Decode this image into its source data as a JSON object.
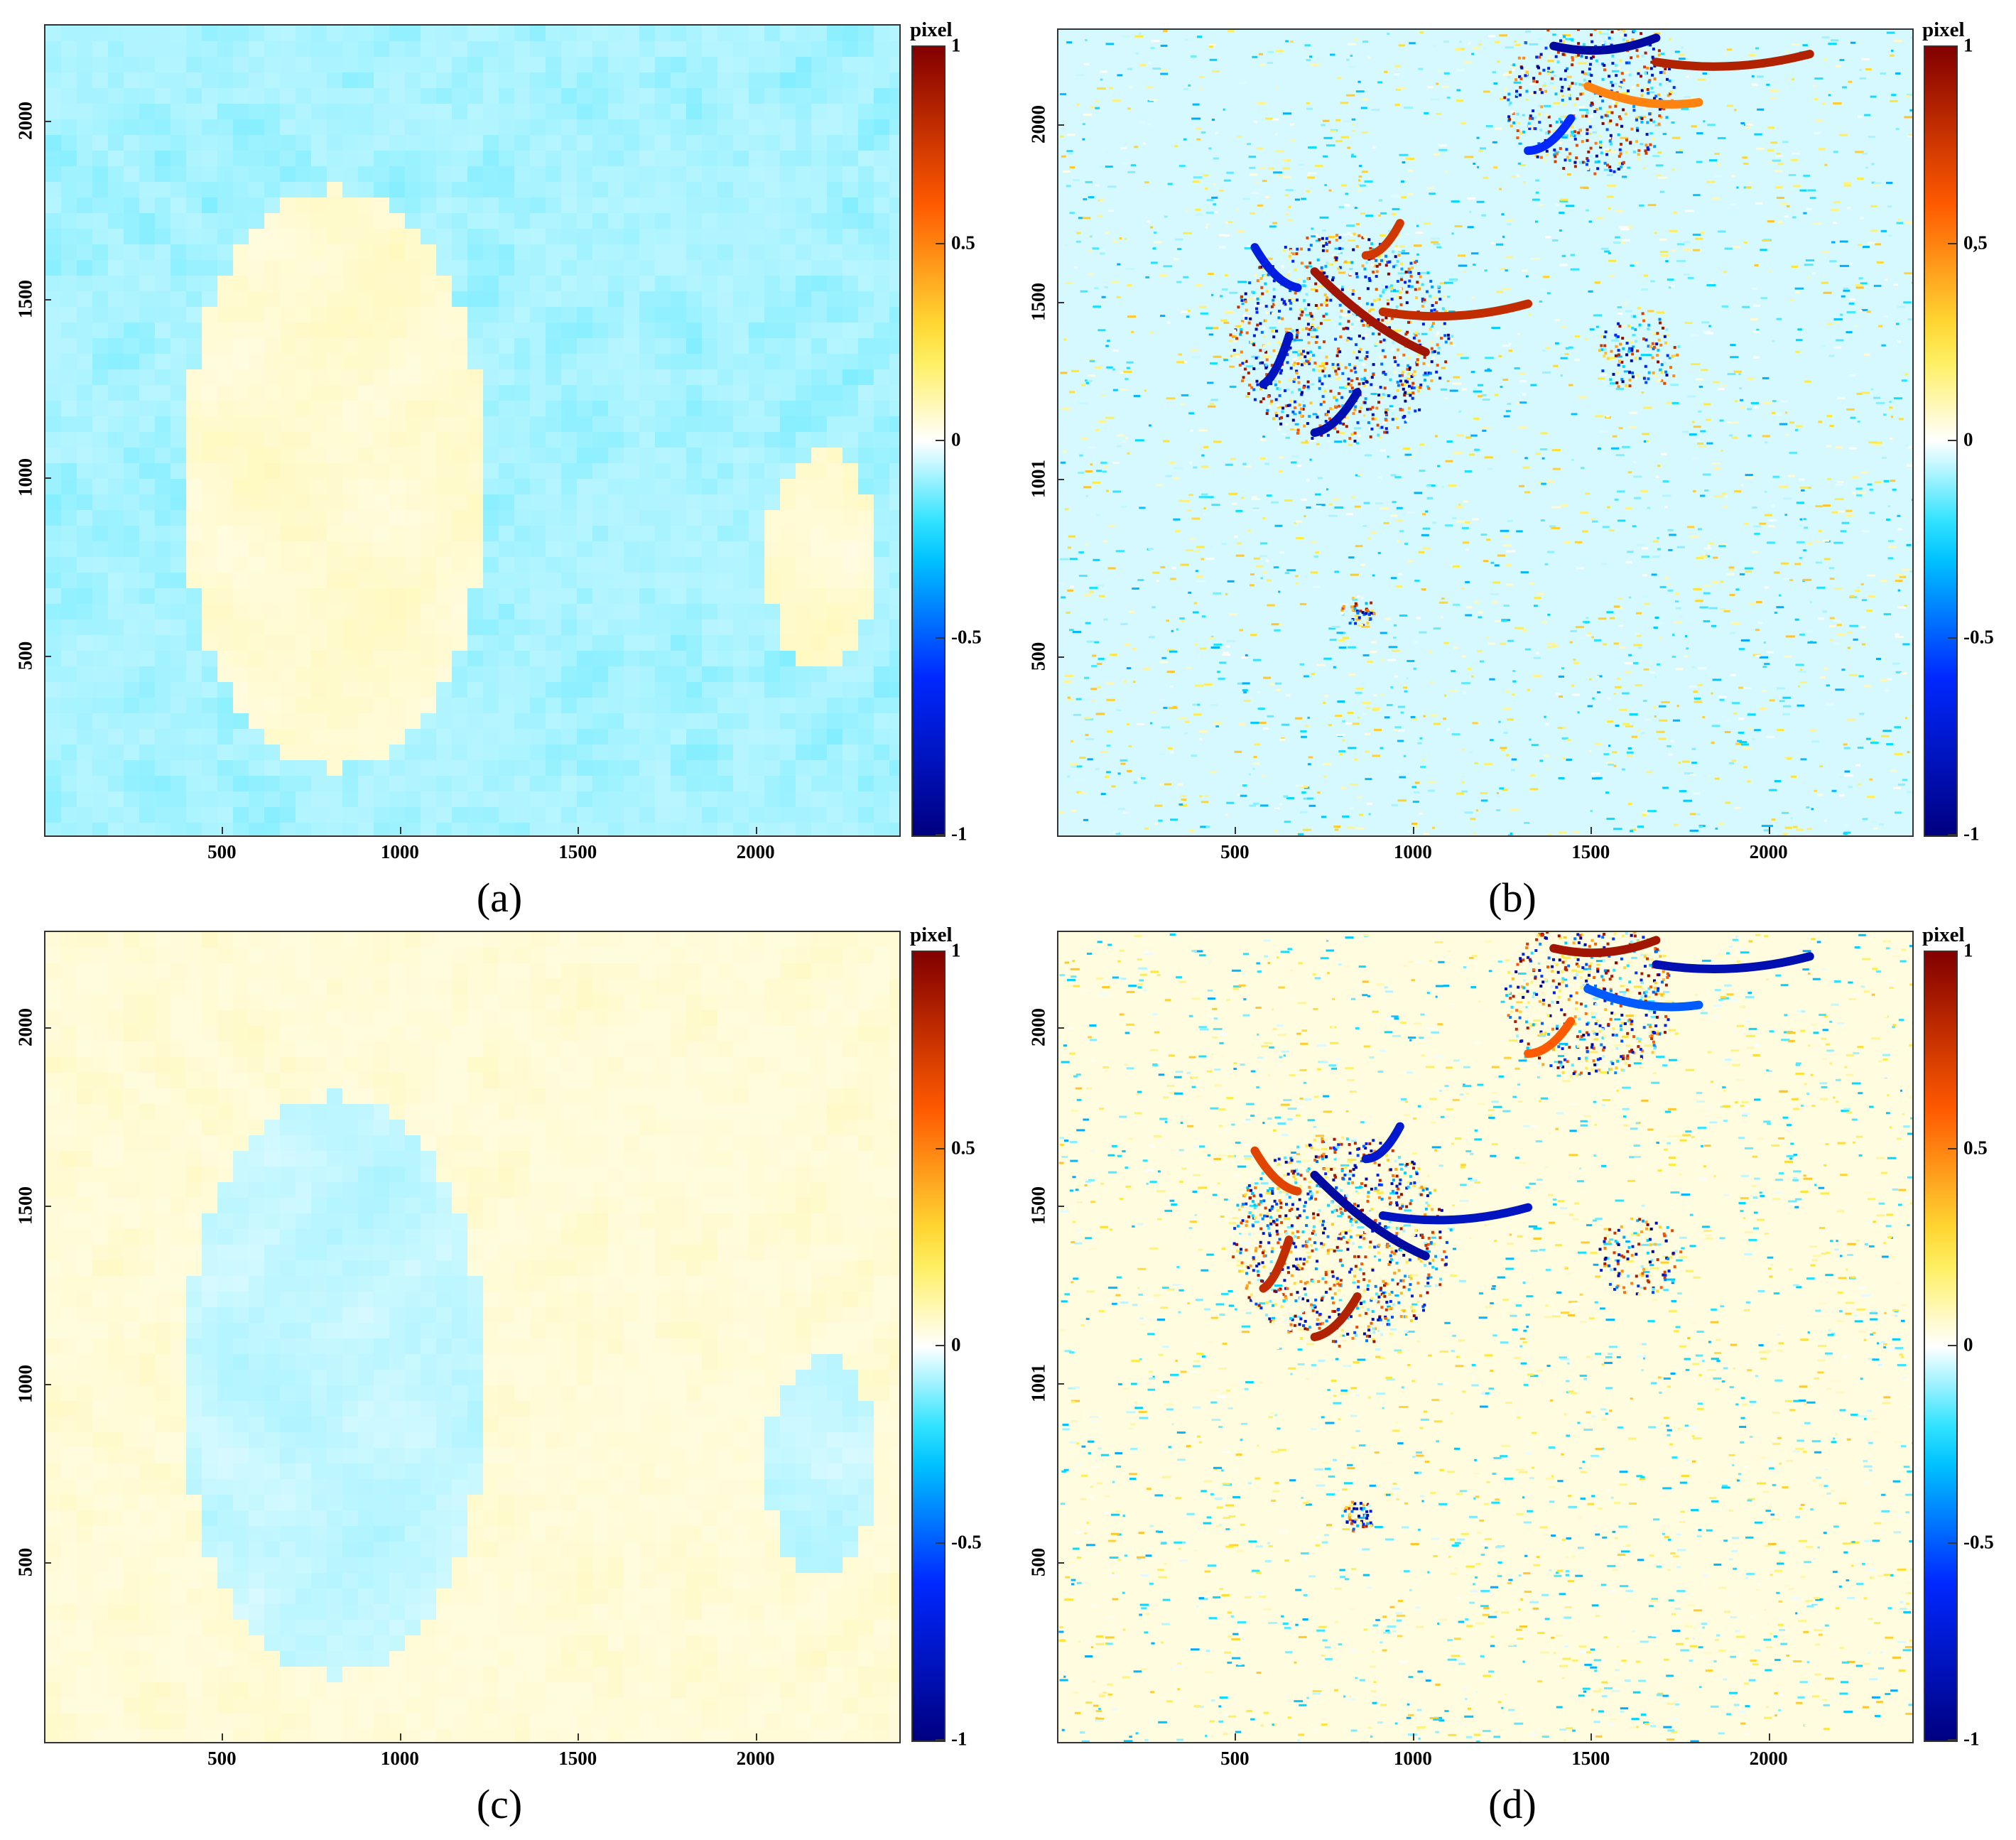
{
  "chart_data": [
    {
      "type": "heatmap",
      "panel_label": "(a)",
      "x_ticks": [
        500,
        1000,
        1500,
        2000
      ],
      "y_ticks": [
        500,
        1000,
        1500,
        2000
      ],
      "xlim": [
        0,
        2400
      ],
      "ylim": [
        0,
        2270
      ],
      "colorbar": {
        "title": "pixel",
        "range": [
          -1,
          1
        ],
        "ticks": [
          "1",
          "0.5",
          "0",
          "-0.5",
          "-1"
        ],
        "colormap": "jet-white-center"
      },
      "pattern": "smooth-terrain",
      "value_range": [
        -0.2,
        0.12
      ],
      "sign": 1
    },
    {
      "type": "heatmap",
      "panel_label": "(b)",
      "x_ticks": [
        500,
        1000,
        1500,
        2000
      ],
      "y_ticks": [
        500,
        1001,
        1500,
        2000
      ],
      "xlim": [
        0,
        2400
      ],
      "ylim": [
        0,
        2270
      ],
      "colorbar": {
        "title": "pixel",
        "range": [
          -1,
          1
        ],
        "ticks": [
          "1",
          "0,5",
          "0",
          "-0.5",
          "-1"
        ],
        "colormap": "jet-white-center"
      },
      "pattern": "noisy-residual",
      "value_range": [
        -1,
        1
      ],
      "sign": 1
    },
    {
      "type": "heatmap",
      "panel_label": "(c)",
      "x_ticks": [
        500,
        1000,
        1500,
        2000
      ],
      "y_ticks": [
        500,
        1000,
        1500,
        2000
      ],
      "xlim": [
        0,
        2400
      ],
      "ylim": [
        0,
        2270
      ],
      "colorbar": {
        "title": "pixel",
        "range": [
          -1,
          1
        ],
        "ticks": [
          "1",
          "0.5",
          "0",
          "-0.5",
          "-1"
        ],
        "colormap": "jet-white-center"
      },
      "pattern": "smooth-terrain",
      "value_range": [
        -0.12,
        0.12
      ],
      "sign": -1
    },
    {
      "type": "heatmap",
      "panel_label": "(d)",
      "x_ticks": [
        500,
        1000,
        1500,
        2000
      ],
      "y_ticks": [
        500,
        1001,
        1500,
        2000
      ],
      "xlim": [
        0,
        2400
      ],
      "ylim": [
        0,
        2270
      ],
      "colorbar": {
        "title": "pixel",
        "range": [
          -1,
          1
        ],
        "ticks": [
          "1",
          "0.5",
          "0",
          "-0.5",
          "-1"
        ],
        "colormap": "jet-white-center"
      },
      "pattern": "noisy-residual",
      "value_range": [
        -1,
        1
      ],
      "sign": -1
    }
  ]
}
